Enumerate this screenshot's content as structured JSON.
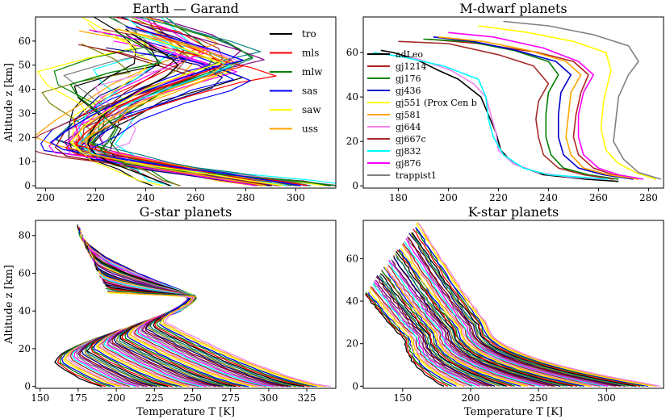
{
  "chart_data": [
    {
      "type": "line",
      "title": "Earth — Garand",
      "xlabel": "",
      "ylabel": "Altitude z [km]",
      "xlim": [
        196,
        316
      ],
      "ylim": [
        -1,
        70
      ],
      "xticks": [
        200,
        220,
        240,
        260,
        280,
        300
      ],
      "yticks": [
        0,
        10,
        20,
        30,
        40,
        50,
        60
      ],
      "legend_position": "top-right",
      "legend": [
        {
          "name": "tro",
          "color": "#000000"
        },
        {
          "name": "mls",
          "color": "#ff0000"
        },
        {
          "name": "mlw",
          "color": "#008000"
        },
        {
          "name": "sas",
          "color": "#0000ff"
        },
        {
          "name": "saw",
          "color": "#ffff00"
        },
        {
          "name": "uss",
          "color": "#ffa500"
        }
      ],
      "palette": [
        "#000000",
        "#ff0000",
        "#008000",
        "#0000ff",
        "#ffff00",
        "#ffa500",
        "#ee82ee",
        "#a52a2a",
        "#00ffff",
        "#ff00ff",
        "#808080",
        "#800080",
        "#800000",
        "#000080",
        "#808000",
        "#008080"
      ],
      "series": [
        {
          "color": "#000000",
          "points": [
            [
              250,
              0
            ],
            [
              245,
              2
            ],
            [
              235,
              6
            ],
            [
              225,
              10
            ],
            [
              220,
              13
            ],
            [
              217,
              17
            ],
            [
              218,
              22
            ],
            [
              222,
              28
            ],
            [
              228,
              34
            ],
            [
              238,
              40
            ],
            [
              248,
              45
            ],
            [
              253,
              50
            ],
            [
              250,
              53
            ],
            [
              244,
              57
            ],
            [
              236,
              62
            ],
            [
              232,
              65
            ]
          ]
        },
        {
          "color": "#ff0000",
          "points": [
            [
              294,
              0
            ],
            [
              284,
              2
            ],
            [
              268,
              5
            ],
            [
              248,
              9
            ],
            [
              232,
              12
            ],
            [
              220,
              15
            ],
            [
              212,
              17
            ],
            [
              215,
              21
            ],
            [
              222,
              27
            ],
            [
              230,
              33
            ],
            [
              242,
              39
            ],
            [
              258,
              45
            ],
            [
              271,
              50
            ],
            [
              266,
              54
            ],
            [
              256,
              58
            ],
            [
              243,
              63
            ],
            [
              236,
              66
            ]
          ]
        },
        {
          "color": "#008000",
          "points": [
            [
              316,
              0
            ],
            [
              300,
              2
            ],
            [
              278,
              4
            ],
            [
              255,
              6
            ],
            [
              232,
              9
            ],
            [
              225,
              12
            ],
            [
              222,
              15
            ],
            [
              225,
              18
            ],
            [
              228,
              24
            ],
            [
              222,
              30
            ],
            [
              213,
              37
            ],
            [
              210,
              42
            ],
            [
              226,
              47
            ],
            [
              246,
              51
            ],
            [
              240,
              57
            ],
            [
              228,
              64
            ]
          ]
        },
        {
          "color": "#0000ff",
          "points": [
            [
              302,
              0
            ],
            [
              290,
              2
            ],
            [
              272,
              5
            ],
            [
              250,
              8
            ],
            [
              232,
              11
            ],
            [
              218,
              13
            ],
            [
              207,
              15
            ],
            [
              202,
              18
            ],
            [
              210,
              24
            ],
            [
              220,
              30
            ],
            [
              234,
              37
            ],
            [
              250,
              43
            ],
            [
              267,
              49
            ],
            [
              279,
              52
            ],
            [
              268,
              56
            ],
            [
              248,
              62
            ],
            [
              232,
              66
            ]
          ]
        },
        {
          "color": "#ffff00",
          "points": [
            [
              295,
              0
            ],
            [
              282,
              2
            ],
            [
              264,
              5
            ],
            [
              244,
              8
            ],
            [
              228,
              11
            ],
            [
              214,
              14
            ],
            [
              210,
              18
            ],
            [
              216,
              25
            ],
            [
              226,
              32
            ],
            [
              240,
              40
            ],
            [
              258,
              47
            ],
            [
              270,
              51
            ],
            [
              255,
              57
            ],
            [
              239,
              62
            ],
            [
              229,
              65
            ]
          ]
        },
        {
          "color": "#ffa500",
          "points": [
            [
              288,
              0
            ],
            [
              276,
              2
            ],
            [
              258,
              5
            ],
            [
              240,
              8
            ],
            [
              228,
              11
            ],
            [
              218,
              13
            ],
            [
              216,
              18
            ],
            [
              220,
              24
            ],
            [
              232,
              32
            ],
            [
              250,
              40
            ],
            [
              266,
              46
            ],
            [
              272,
              51
            ],
            [
              260,
              57
            ],
            [
              246,
              61
            ],
            [
              228,
              65
            ]
          ]
        }
      ],
      "extra_series_count": 42
    },
    {
      "type": "line",
      "title": "M-dwarf planets",
      "xlabel": "",
      "ylabel": "",
      "xlim": [
        166,
        286
      ],
      "ylim": [
        -1,
        76
      ],
      "xticks": [
        180,
        200,
        220,
        240,
        260,
        280
      ],
      "yticks": [
        0,
        20,
        40,
        60
      ],
      "legend_position": "left",
      "series": [
        {
          "name": "adLeo",
          "color": "#000000",
          "points": [
            [
              268,
              2
            ],
            [
              255,
              3
            ],
            [
              238,
              5
            ],
            [
              226,
              10
            ],
            [
              221,
              16
            ],
            [
              219,
              24
            ],
            [
              216,
              32
            ],
            [
              213,
              40
            ],
            [
              204,
              48
            ],
            [
              196,
              52
            ],
            [
              187,
              57
            ],
            [
              178,
              60
            ],
            [
              173,
              61
            ]
          ]
        },
        {
          "name": "gj1214",
          "color": "#b22222",
          "points": [
            [
              276,
              3
            ],
            [
              266,
              5
            ],
            [
              258,
              8
            ],
            [
              252,
              14
            ],
            [
              250,
              22
            ],
            [
              251,
              32
            ],
            [
              253,
              42
            ],
            [
              256,
              50
            ],
            [
              250,
              56
            ],
            [
              236,
              60
            ],
            [
              212,
              64
            ],
            [
              192,
              66
            ]
          ]
        },
        {
          "name": "gj176",
          "color": "#008000",
          "points": [
            [
              268,
              3
            ],
            [
              256,
              5
            ],
            [
              246,
              8
            ],
            [
              241,
              14
            ],
            [
              239,
              22
            ],
            [
              239,
              32
            ],
            [
              240,
              42
            ],
            [
              244,
              50
            ],
            [
              240,
              56
            ],
            [
              226,
              61
            ],
            [
              208,
              65
            ],
            [
              190,
              66
            ]
          ]
        },
        {
          "name": "gj436",
          "color": "#0000cd",
          "points": [
            [
              274,
              3
            ],
            [
              262,
              5
            ],
            [
              252,
              8
            ],
            [
              246,
              14
            ],
            [
              244,
              22
            ],
            [
              244,
              32
            ],
            [
              245,
              42
            ],
            [
              249,
              50
            ],
            [
              243,
              56
            ],
            [
              227,
              61
            ],
            [
              210,
              65
            ],
            [
              194,
              67
            ]
          ]
        },
        {
          "name": "gj551 (Prox Cen b",
          "color": "#ffff00",
          "points": [
            [
              283,
              3
            ],
            [
              275,
              6
            ],
            [
              268,
              10
            ],
            [
              263,
              16
            ],
            [
              261,
              26
            ],
            [
              262,
              38
            ],
            [
              265,
              52
            ],
            [
              263,
              60
            ],
            [
              250,
              65
            ],
            [
              232,
              69
            ],
            [
              212,
              72
            ]
          ]
        },
        {
          "name": "gj581",
          "color": "#ffa500",
          "points": [
            [
              276,
              3
            ],
            [
              264,
              5
            ],
            [
              254,
              8
            ],
            [
              249,
              14
            ],
            [
              247,
              22
            ],
            [
              248,
              32
            ],
            [
              249,
              42
            ],
            [
              253,
              50
            ],
            [
              247,
              56
            ],
            [
              232,
              61
            ],
            [
              214,
              65
            ],
            [
              196,
              67
            ]
          ]
        },
        {
          "name": "gj644",
          "color": "#ee82ee",
          "points": [
            [
              262,
              3
            ],
            [
              248,
              4
            ],
            [
              236,
              6
            ],
            [
              226,
              10
            ],
            [
              220,
              16
            ],
            [
              219,
              24
            ],
            [
              217,
              32
            ],
            [
              215,
              40
            ],
            [
              210,
              46
            ],
            [
              201,
              52
            ],
            [
              188,
              57
            ],
            [
              176,
              59
            ]
          ]
        },
        {
          "name": "gj667c",
          "color": "#a52a2a",
          "points": [
            [
              266,
              3
            ],
            [
              254,
              5
            ],
            [
              244,
              8
            ],
            [
              238,
              14
            ],
            [
              236,
              22
            ],
            [
              235,
              30
            ],
            [
              236,
              38
            ],
            [
              240,
              46
            ],
            [
              234,
              54
            ],
            [
              220,
              59
            ],
            [
              200,
              64
            ],
            [
              180,
              65
            ]
          ]
        },
        {
          "name": "gj832",
          "color": "#00ffff",
          "points": [
            [
              264,
              3
            ],
            [
              252,
              4
            ],
            [
              240,
              5
            ],
            [
              230,
              8
            ],
            [
              222,
              14
            ],
            [
              218,
              22
            ],
            [
              216,
              30
            ],
            [
              215,
              40
            ],
            [
              212,
              48
            ],
            [
              198,
              54
            ],
            [
              182,
              58
            ],
            [
              170,
              60
            ]
          ]
        },
        {
          "name": "gj876",
          "color": "#ff00ff",
          "points": [
            [
              278,
              3
            ],
            [
              268,
              5
            ],
            [
              260,
              8
            ],
            [
              254,
              14
            ],
            [
              252,
              22
            ],
            [
              252,
              32
            ],
            [
              254,
              42
            ],
            [
              258,
              50
            ],
            [
              252,
              56
            ],
            [
              238,
              62
            ],
            [
              218,
              67
            ],
            [
              200,
              69
            ]
          ]
        },
        {
          "name": "trappist1",
          "color": "#808080",
          "points": [
            [
              285,
              3
            ],
            [
              276,
              6
            ],
            [
              270,
              12
            ],
            [
              266,
              20
            ],
            [
              267,
              30
            ],
            [
              268,
              40
            ],
            [
              272,
              50
            ],
            [
              276,
              56
            ],
            [
              272,
              63
            ],
            [
              258,
              68
            ],
            [
              240,
              72
            ],
            [
              222,
              74
            ]
          ]
        }
      ]
    },
    {
      "type": "line",
      "title": "G-star planets",
      "xlabel": "Temperature T [K]",
      "ylabel": "Altitude z [km]",
      "xlim": [
        147,
        344
      ],
      "ylim": [
        -1,
        88
      ],
      "xticks": [
        150,
        175,
        200,
        225,
        250,
        275,
        300,
        325
      ],
      "yticks": [
        0,
        20,
        40,
        60,
        80
      ],
      "series_count": 55
    },
    {
      "type": "line",
      "title": "K-star planets",
      "xlabel": "Temperature T [K]",
      "ylabel": "",
      "xlim": [
        121,
        342
      ],
      "ylim": [
        -1,
        78
      ],
      "xticks": [
        150,
        200,
        250,
        300
      ],
      "yticks": [
        0,
        20,
        40,
        60
      ],
      "series_count": 55
    }
  ]
}
